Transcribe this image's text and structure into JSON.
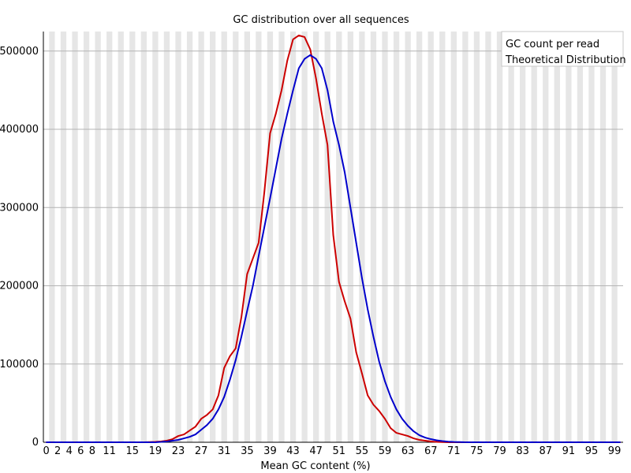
{
  "chart_data": {
    "type": "line",
    "title": "GC distribution over all sequences",
    "xlabel": "Mean GC content (%)",
    "ylabel": "",
    "xlim": [
      0,
      101
    ],
    "ylim": [
      0,
      525000
    ],
    "x_tick_labels": [
      0,
      2,
      4,
      6,
      8,
      11,
      15,
      19,
      23,
      27,
      31,
      35,
      39,
      43,
      47,
      51,
      55,
      59,
      63,
      67,
      71,
      75,
      79,
      83,
      87,
      91,
      95,
      99
    ],
    "y_ticks": [
      0,
      100000,
      200000,
      300000,
      400000,
      500000
    ],
    "grid": "horizontal lines with alternating vertical bands",
    "legend_position": "top-right",
    "x": [
      0,
      1,
      2,
      3,
      4,
      5,
      6,
      7,
      8,
      9,
      10,
      11,
      12,
      13,
      14,
      15,
      16,
      17,
      18,
      19,
      20,
      21,
      22,
      23,
      24,
      25,
      26,
      27,
      28,
      29,
      30,
      31,
      32,
      33,
      34,
      35,
      36,
      37,
      38,
      39,
      40,
      41,
      42,
      43,
      44,
      45,
      46,
      47,
      48,
      49,
      50,
      51,
      52,
      53,
      54,
      55,
      56,
      57,
      58,
      59,
      60,
      61,
      62,
      63,
      64,
      65,
      66,
      67,
      68,
      69,
      70,
      71,
      72,
      73,
      74,
      75,
      76,
      77,
      78,
      79,
      80,
      81,
      82,
      83,
      84,
      85,
      86,
      87,
      88,
      89,
      90,
      91,
      92,
      93,
      94,
      95,
      96,
      97,
      98,
      99,
      100
    ],
    "series": [
      {
        "name": "GC count per read",
        "color": "#cc0000",
        "values": [
          0,
          0,
          0,
          0,
          0,
          0,
          0,
          0,
          0,
          0,
          0,
          0,
          0,
          0,
          0,
          0,
          0,
          0,
          200,
          500,
          1000,
          2000,
          4000,
          8000,
          10000,
          15000,
          20000,
          30000,
          35000,
          42000,
          60000,
          95000,
          110000,
          120000,
          160000,
          215000,
          235000,
          255000,
          320000,
          395000,
          420000,
          450000,
          488000,
          515000,
          520000,
          518000,
          502000,
          465000,
          420000,
          380000,
          265000,
          205000,
          180000,
          158000,
          115000,
          88000,
          60000,
          48000,
          40000,
          30000,
          18000,
          12000,
          10000,
          8000,
          5000,
          3000,
          2000,
          1000,
          500,
          200,
          0,
          0,
          0,
          0,
          0,
          0,
          0,
          0,
          0,
          0,
          0,
          0,
          0,
          0,
          0,
          0,
          0,
          0,
          0,
          0,
          0,
          0,
          0,
          0,
          0,
          0,
          0,
          0,
          0,
          0,
          0
        ]
      },
      {
        "name": "Theoretical Distribution",
        "color": "#0000cc",
        "values": [
          0,
          0,
          0,
          0,
          0,
          0,
          0,
          0,
          0,
          0,
          0,
          0,
          0,
          0,
          0,
          0,
          0,
          0,
          0,
          0,
          500,
          1000,
          2000,
          3000,
          5000,
          7000,
          10000,
          16000,
          22000,
          30000,
          42000,
          58000,
          80000,
          105000,
          135000,
          168000,
          200000,
          238000,
          275000,
          312000,
          350000,
          388000,
          420000,
          450000,
          478000,
          490000,
          495000,
          490000,
          478000,
          450000,
          410000,
          380000,
          345000,
          300000,
          255000,
          210000,
          170000,
          135000,
          103000,
          78000,
          58000,
          42000,
          30000,
          21000,
          14000,
          9000,
          6000,
          4000,
          2500,
          1500,
          800,
          400,
          200,
          0,
          0,
          0,
          0,
          0,
          0,
          0,
          0,
          0,
          0,
          0,
          0,
          0,
          0,
          0,
          0,
          0,
          0,
          0,
          0,
          0,
          0,
          0,
          0,
          0,
          0,
          0,
          0
        ]
      }
    ]
  }
}
